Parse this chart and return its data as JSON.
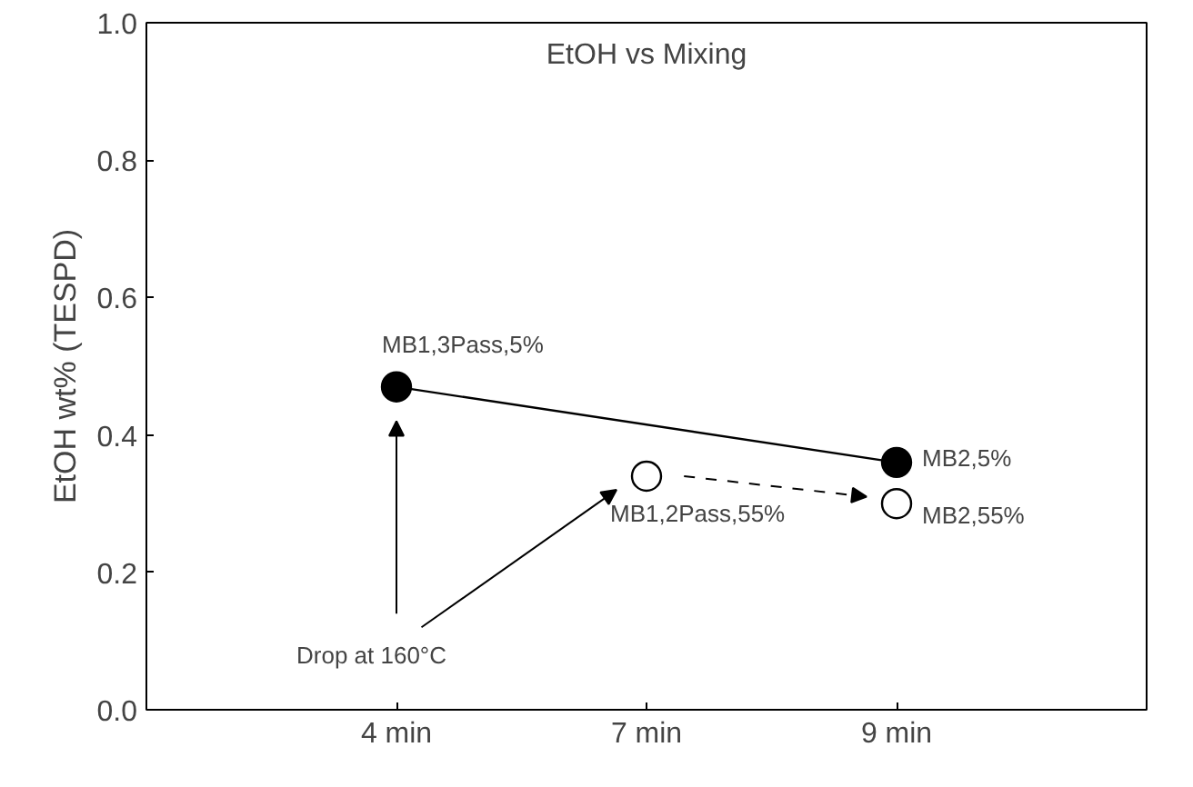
{
  "chart_data": {
    "type": "line",
    "title": "EtOH vs Mixing",
    "ylabel": "EtOH wt% (TESPD)",
    "categories": [
      "4 min",
      "7 min",
      "9 min"
    ],
    "series": [
      {
        "color": "#000000",
        "values": [
          0.47,
          null,
          0.36
        ],
        "marker": "circle",
        "line_style": "solid"
      },
      {
        "type": "scatter",
        "color": "#000000",
        "values": [
          null,
          0.34,
          0.3
        ],
        "marker": "circle"
      }
    ],
    "ylim": [
      0,
      1
    ],
    "yticks": [
      {
        "value": 0,
        "label": "0.0"
      },
      {
        "value": 0.2,
        "label": "0.2"
      },
      {
        "value": 0.4,
        "label": "0.4"
      },
      {
        "value": 0.6,
        "label": "0.6"
      },
      {
        "value": 0.8,
        "label": "0.8"
      },
      {
        "value": 1,
        "label": "1.0"
      }
    ],
    "grid": false,
    "annotations": [
      {
        "text": "MB1,3Pass,5%",
        "x": "4 min",
        "y": 0.47
      },
      {
        "text": "MB2,5%",
        "x": "9 min",
        "y": 0.36
      },
      {
        "text": "MB1,2Pass,55%",
        "x": "7 min",
        "y": 0.34
      },
      {
        "text": "MB2,55%",
        "x": "9 min",
        "y": 0.3
      },
      "Drop at 160°C"
    ]
  }
}
